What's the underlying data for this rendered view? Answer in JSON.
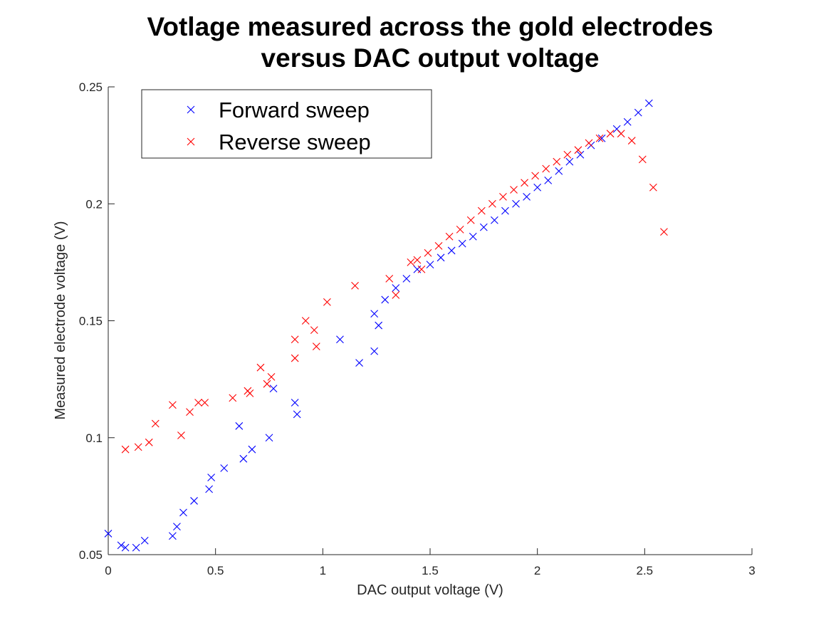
{
  "chart_data": {
    "type": "scatter",
    "title": [
      "Votlage measured across the gold electrodes",
      "versus DAC output voltage"
    ],
    "xlabel": "DAC output voltage (V)",
    "ylabel": "Measured electrode voltage (V)",
    "xlim": [
      0,
      3
    ],
    "ylim": [
      0.05,
      0.25
    ],
    "xticks": [
      0,
      0.5,
      1,
      1.5,
      2,
      2.5,
      3
    ],
    "xtick_labels": [
      "0",
      "0.5",
      "1",
      "1.5",
      "2",
      "2.5",
      "3"
    ],
    "yticks": [
      0.05,
      0.1,
      0.15,
      0.2,
      0.25
    ],
    "ytick_labels": [
      "0.05",
      "0.1",
      "0.15",
      "0.2",
      "0.25"
    ],
    "grid": false,
    "legend": {
      "position": "top-left"
    },
    "marker": "x",
    "series": [
      {
        "name": "Forward sweep",
        "color": "#0000ff",
        "x": [
          0.0,
          0.06,
          0.08,
          0.13,
          0.17,
          0.3,
          0.32,
          0.35,
          0.4,
          0.47,
          0.48,
          0.54,
          0.61,
          0.63,
          0.67,
          0.75,
          0.77,
          0.87,
          0.88,
          1.08,
          1.17,
          1.24,
          1.24,
          1.26,
          1.29,
          1.34,
          1.39,
          1.44,
          1.5,
          1.55,
          1.6,
          1.65,
          1.7,
          1.75,
          1.8,
          1.85,
          1.9,
          1.95,
          2.0,
          2.05,
          2.1,
          2.15,
          2.2,
          2.25,
          2.3,
          2.37,
          2.42,
          2.47,
          2.52
        ],
        "y": [
          0.059,
          0.054,
          0.053,
          0.053,
          0.056,
          0.058,
          0.062,
          0.068,
          0.073,
          0.078,
          0.083,
          0.087,
          0.105,
          0.091,
          0.095,
          0.1,
          0.121,
          0.115,
          0.11,
          0.142,
          0.132,
          0.137,
          0.153,
          0.148,
          0.159,
          0.164,
          0.168,
          0.172,
          0.174,
          0.177,
          0.18,
          0.183,
          0.186,
          0.19,
          0.193,
          0.197,
          0.2,
          0.203,
          0.207,
          0.21,
          0.214,
          0.218,
          0.221,
          0.225,
          0.228,
          0.232,
          0.235,
          0.239,
          0.243
        ]
      },
      {
        "name": "Reverse sweep",
        "color": "#ff0000",
        "x": [
          2.59,
          2.54,
          2.49,
          2.44,
          2.39,
          2.34,
          2.29,
          2.24,
          2.19,
          2.14,
          2.09,
          2.04,
          1.99,
          1.94,
          1.89,
          1.84,
          1.79,
          1.74,
          1.69,
          1.64,
          1.59,
          1.54,
          1.49,
          1.44,
          1.41,
          1.46,
          1.34,
          1.31,
          1.15,
          1.02,
          0.97,
          0.92,
          0.96,
          0.87,
          0.87,
          0.76,
          0.71,
          0.74,
          0.65,
          0.66,
          0.58,
          0.45,
          0.42,
          0.38,
          0.34,
          0.3,
          0.22,
          0.19,
          0.14,
          0.08
        ],
        "y": [
          0.188,
          0.207,
          0.219,
          0.227,
          0.23,
          0.23,
          0.228,
          0.226,
          0.223,
          0.221,
          0.218,
          0.215,
          0.212,
          0.209,
          0.206,
          0.203,
          0.2,
          0.197,
          0.193,
          0.189,
          0.186,
          0.182,
          0.179,
          0.176,
          0.175,
          0.172,
          0.161,
          0.168,
          0.165,
          0.158,
          0.139,
          0.15,
          0.146,
          0.142,
          0.134,
          0.126,
          0.13,
          0.123,
          0.12,
          0.119,
          0.117,
          0.115,
          0.115,
          0.111,
          0.101,
          0.114,
          0.106,
          0.098,
          0.096,
          0.095
        ]
      }
    ]
  }
}
